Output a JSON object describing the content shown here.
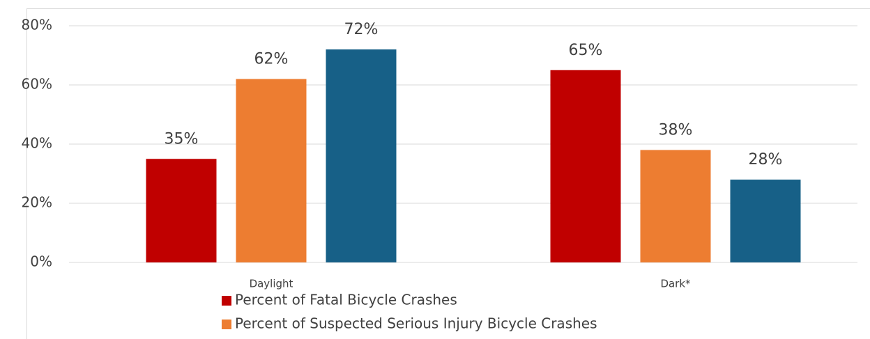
{
  "chart_data": {
    "type": "bar",
    "categories": [
      "Daylight",
      "Dark*"
    ],
    "series": [
      {
        "name": "Percent of Fatal Bicycle Crashes",
        "color": "#c00000",
        "values": [
          35,
          65
        ],
        "value_labels": [
          "35%",
          "65%"
        ]
      },
      {
        "name": "Percent of Suspected Serious Injury Bicycle Crashes",
        "color": "#ed7d31",
        "values": [
          62,
          38
        ],
        "value_labels": [
          "62%",
          "38%"
        ]
      },
      {
        "color": "#176087",
        "values": [
          72,
          28
        ],
        "value_labels": [
          "72%",
          "28%"
        ]
      }
    ],
    "ylim": [
      0,
      80
    ],
    "yticks": [
      {
        "value": 0,
        "label": "0%"
      },
      {
        "value": 20,
        "label": "20%"
      },
      {
        "value": 40,
        "label": "40%"
      },
      {
        "value": 60,
        "label": "60%"
      },
      {
        "value": 80,
        "label": "80%"
      }
    ],
    "grid": true,
    "legend": "bottom"
  }
}
